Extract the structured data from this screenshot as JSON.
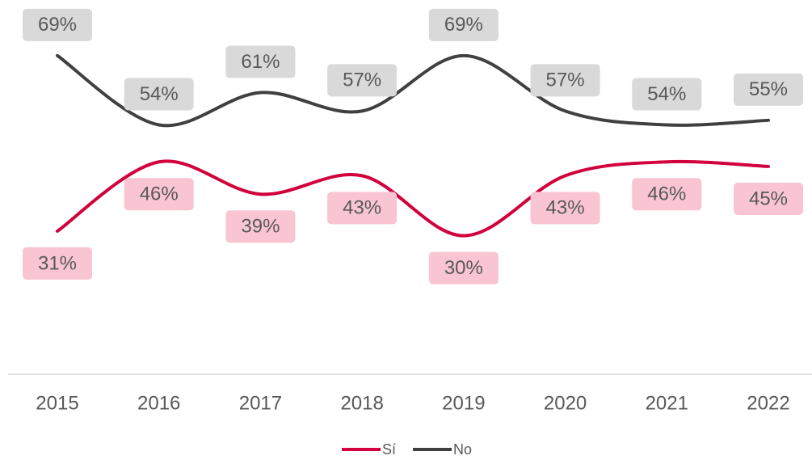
{
  "chart_data": {
    "type": "line",
    "categories": [
      "2015",
      "2016",
      "2017",
      "2018",
      "2019",
      "2020",
      "2021",
      "2022"
    ],
    "series": [
      {
        "name": "Sí",
        "color": "#d2003c",
        "label_color": "#f9c5d2",
        "values": [
          31,
          46,
          39,
          43,
          30,
          43,
          46,
          45
        ],
        "value_labels": [
          "31%",
          "46%",
          "39%",
          "43%",
          "30%",
          "43%",
          "46%",
          "45%"
        ]
      },
      {
        "name": "No",
        "color": "#404040",
        "label_color": "#d9d9d9",
        "values": [
          69,
          54,
          61,
          57,
          69,
          57,
          54,
          55
        ],
        "value_labels": [
          "69%",
          "54%",
          "61%",
          "57%",
          "69%",
          "57%",
          "54%",
          "55%"
        ]
      }
    ],
    "ylim": [
      0,
      80
    ],
    "smooth": true,
    "legend": "bottom"
  }
}
